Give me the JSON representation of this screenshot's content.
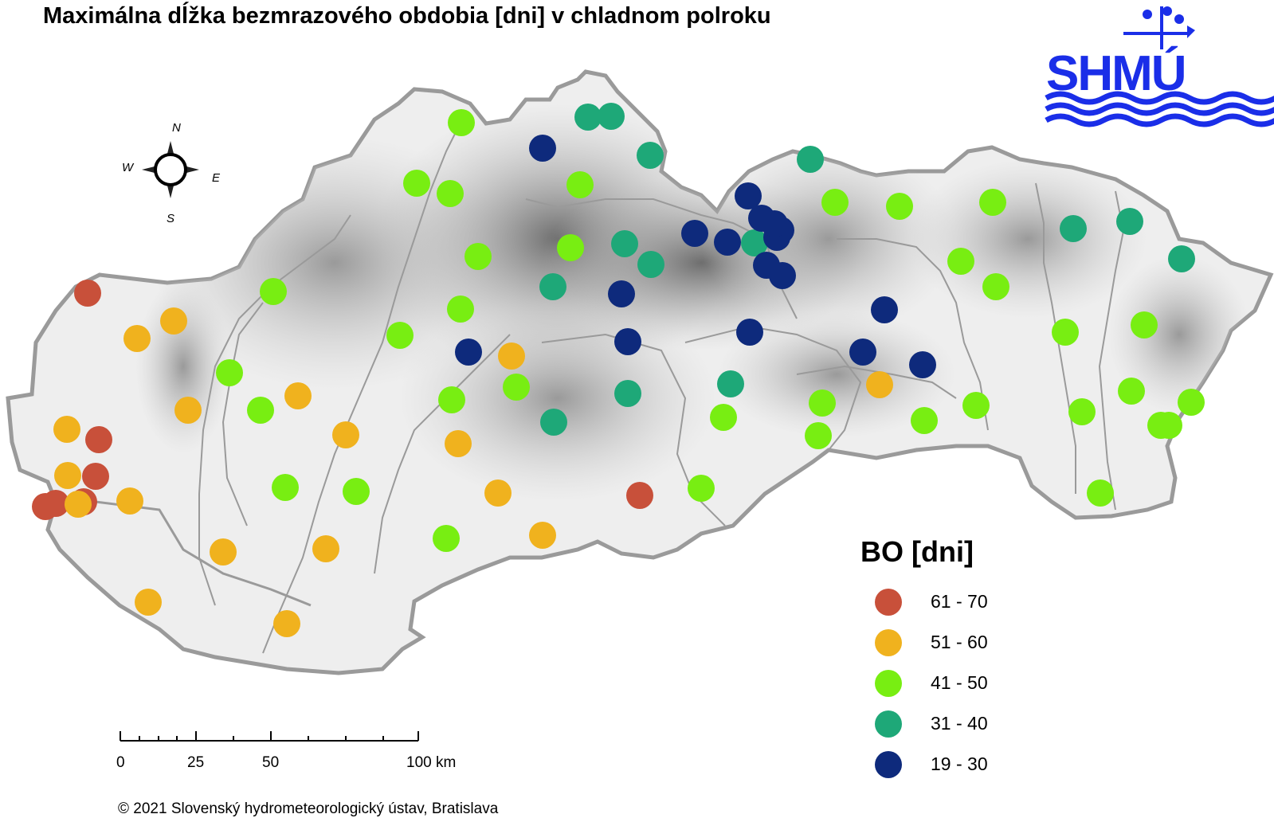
{
  "title": "Maximálna dĺžka bezmrazového obdobia [dni] v chladnom polroku",
  "legend": {
    "title": "BO [dni]",
    "classes": [
      {
        "label": "61 - 70",
        "color": "#c8503a"
      },
      {
        "label": "51 - 60",
        "color": "#f0b21e"
      },
      {
        "label": "41 - 50",
        "color": "#78ee12"
      },
      {
        "label": "31 - 40",
        "color": "#1ea878"
      },
      {
        "label": "19 - 30",
        "color": "#0e2a7c"
      }
    ]
  },
  "scale_bar": {
    "labels": [
      "0",
      "25",
      "50",
      "100 km"
    ]
  },
  "compass": {
    "n": "N",
    "s": "S",
    "e": "E",
    "w": "W"
  },
  "logo": {
    "text": "SHMÚ",
    "color": "#1a2ee8"
  },
  "copyright": "© 2021 Slovenský hydrometeorologický ústav, Bratislava",
  "stations": [
    {
      "c": 0
    },
    {
      "c": 0
    },
    {
      "c": 0
    },
    {
      "c": 0
    },
    {
      "c": 0
    },
    {
      "c": 0
    },
    {
      "c": 0
    },
    {
      "c": 1
    },
    {
      "c": 1
    },
    {
      "c": 1
    },
    {
      "c": 1
    },
    {
      "c": 1
    },
    {
      "c": 1
    },
    {
      "c": 1
    },
    {
      "c": 1
    },
    {
      "c": 1
    },
    {
      "c": 1
    },
    {
      "c": 1
    },
    {
      "c": 1
    },
    {
      "c": 1
    },
    {
      "c": 1
    },
    {
      "c": 1
    },
    {
      "c": 1
    },
    {
      "c": 1
    },
    {
      "c": 1
    },
    {
      "c": 2
    },
    {
      "c": 2
    },
    {
      "c": 2
    },
    {
      "c": 2
    },
    {
      "c": 2
    },
    {
      "c": 2
    },
    {
      "c": 2
    },
    {
      "c": 2
    },
    {
      "c": 2
    },
    {
      "c": 2
    },
    {
      "c": 2
    },
    {
      "c": 2
    },
    {
      "c": 2
    },
    {
      "c": 2
    },
    {
      "c": 2
    },
    {
      "c": 2
    },
    {
      "c": 2
    },
    {
      "c": 2
    },
    {
      "c": 2
    },
    {
      "c": 2
    },
    {
      "c": 2
    },
    {
      "c": 2
    },
    {
      "c": 2
    },
    {
      "c": 2
    },
    {
      "c": 2
    },
    {
      "c": 2
    },
    {
      "c": 2
    },
    {
      "c": 2
    },
    {
      "c": 2
    },
    {
      "c": 2
    },
    {
      "c": 2
    },
    {
      "c": 2
    },
    {
      "c": 2
    },
    {
      "c": 2
    },
    {
      "c": 2
    },
    {
      "c": 3
    },
    {
      "c": 3
    },
    {
      "c": 3
    },
    {
      "c": 3
    },
    {
      "c": 3
    },
    {
      "c": 3
    },
    {
      "c": 3
    },
    {
      "c": 3
    },
    {
      "c": 3
    },
    {
      "c": 3
    },
    {
      "c": 3
    },
    {
      "c": 3
    },
    {
      "c": 3
    },
    {
      "c": 3
    },
    {
      "c": 4
    },
    {
      "c": 4
    },
    {
      "c": 4
    },
    {
      "c": 4
    },
    {
      "c": 4
    },
    {
      "c": 4
    },
    {
      "c": 4
    },
    {
      "c": 4
    },
    {
      "c": 4
    },
    {
      "c": 4
    },
    {
      "c": 4
    },
    {
      "c": 4
    },
    {
      "c": 4
    },
    {
      "c": 4
    },
    {
      "c": 4
    },
    {
      "c": 4
    },
    {
      "c": 4
    }
  ]
}
